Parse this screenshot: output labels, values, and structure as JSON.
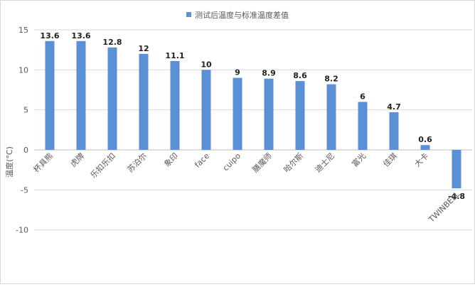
{
  "colors": {
    "bar": "#5b8fd6",
    "grid": "#d9d9d9",
    "axis": "#bfbfbf",
    "border": "#d9d9d9"
  },
  "chart_data": {
    "type": "bar",
    "title": "",
    "legend": {
      "label": "测试后温度与标准温度差值",
      "placement": "top"
    },
    "xlabel": "",
    "ylabel": "温度(°C)",
    "ylim": [
      -10,
      15
    ],
    "yticks": [
      15,
      10,
      5,
      0,
      -5,
      -10
    ],
    "grid": true,
    "categories": [
      "杯具熊",
      "虎牌",
      "乐扣乐扣",
      "苏泊尔",
      "象印",
      "face",
      "cuipo",
      "膳魔师",
      "哈尔斯",
      "迪士尼",
      "富光",
      "佳琪",
      "大卡",
      "TWINBELL"
    ],
    "series": [
      {
        "name": "测试后温度与标准温度差值",
        "values": [
          13.6,
          13.6,
          12.8,
          12,
          11.1,
          10,
          9,
          8.9,
          8.6,
          8.2,
          6,
          4.7,
          0.6,
          -4.8
        ]
      }
    ]
  }
}
